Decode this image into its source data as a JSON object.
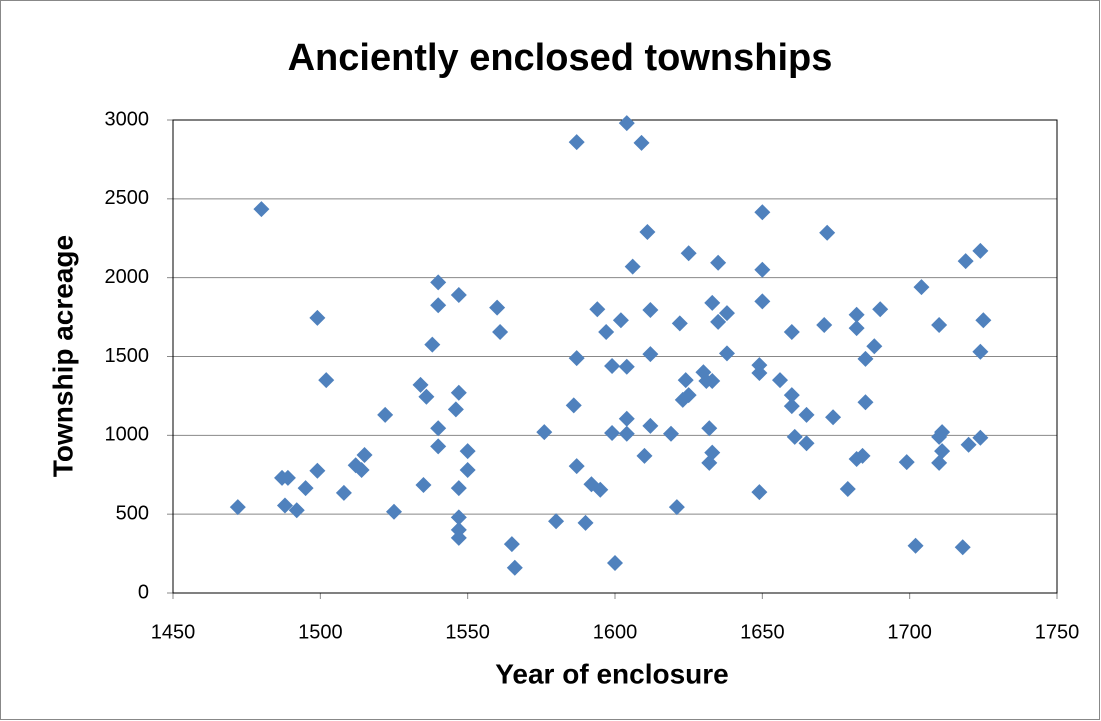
{
  "chart_data": {
    "type": "scatter",
    "title": "Anciently enclosed townships",
    "x_label": "Year of enclosure",
    "y_label": "Township acreage",
    "color": "#4f81bd",
    "grid": true,
    "xlim": [
      1450,
      1750
    ],
    "xticks": [
      1450,
      1500,
      1550,
      1600,
      1650,
      1700,
      1750
    ],
    "ylim": [
      0,
      3000
    ],
    "yticks": [
      0,
      500,
      1000,
      1500,
      2000,
      2500,
      3000
    ],
    "x": [
      1472,
      1480,
      1487,
      1488,
      1489,
      1492,
      1495,
      1499,
      1499,
      1502,
      1508,
      1512,
      1514,
      1515,
      1522,
      1525,
      1535,
      1534,
      1536,
      1538,
      1540,
      1540,
      1540,
      1540,
      1547,
      1547,
      1546,
      1547,
      1547,
      1547,
      1547,
      1550,
      1550,
      1560,
      1561,
      1565,
      1566,
      1576,
      1580,
      1587,
      1586,
      1587,
      1587,
      1590,
      1592,
      1594,
      1595,
      1597,
      1599,
      1599,
      1600,
      1602,
      1604,
      1604,
      1604,
      1604,
      1606,
      1609,
      1610,
      1611,
      1612,
      1612,
      1612,
      1619,
      1621,
      1622,
      1623,
      1624,
      1625,
      1625,
      1630,
      1631,
      1632,
      1632,
      1633,
      1633,
      1633,
      1635,
      1635,
      1638,
      1638,
      1650,
      1650,
      1649,
      1649,
      1649,
      1650,
      1656,
      1660,
      1660,
      1660,
      1661,
      1665,
      1665,
      1671,
      1672,
      1674,
      1679,
      1682,
      1682,
      1682,
      1684,
      1685,
      1685,
      1688,
      1690,
      1699,
      1702,
      1704,
      1710,
      1710,
      1710,
      1711,
      1711,
      1718,
      1719,
      1720,
      1724,
      1724,
      1724,
      1725
    ],
    "values": [
      545,
      2435,
      730,
      555,
      730,
      525,
      665,
      1745,
      775,
      1350,
      635,
      810,
      780,
      875,
      1130,
      515,
      685,
      1320,
      1245,
      1575,
      1970,
      1825,
      1045,
      930,
      1890,
      1270,
      1165,
      665,
      480,
      400,
      350,
      900,
      780,
      1810,
      1655,
      310,
      160,
      1020,
      455,
      2860,
      1190,
      1490,
      805,
      445,
      690,
      1800,
      655,
      1655,
      1440,
      1015,
      190,
      1730,
      2980,
      1435,
      1105,
      1010,
      2070,
      2855,
      870,
      2290,
      1060,
      1795,
      1515,
      1010,
      545,
      1710,
      1225,
      1350,
      1255,
      2155,
      1400,
      1345,
      1045,
      825,
      1840,
      890,
      1345,
      2095,
      1720,
      1775,
      1520,
      2415,
      2050,
      640,
      1445,
      1395,
      1850,
      1350,
      1255,
      1185,
      1655,
      990,
      950,
      1130,
      1700,
      2285,
      1115,
      660,
      1765,
      1680,
      850,
      870,
      1485,
      1210,
      1565,
      1800,
      830,
      300,
      1940,
      990,
      825,
      1700,
      900,
      1020,
      290,
      2105,
      940,
      2170,
      1530,
      985,
      1730
    ]
  }
}
